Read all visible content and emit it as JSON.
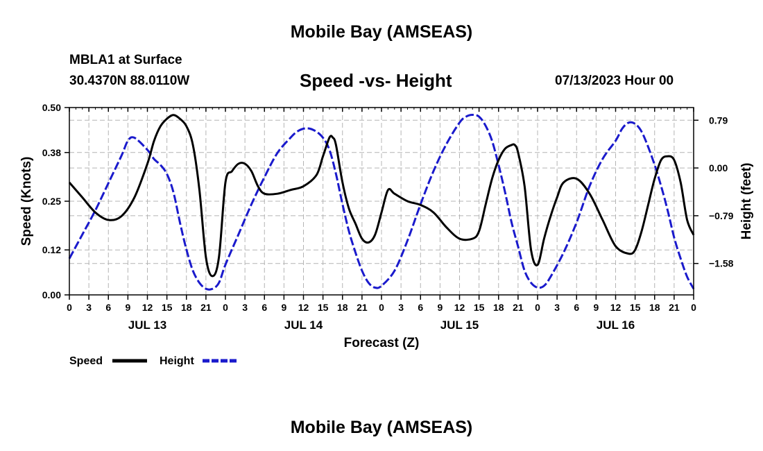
{
  "page": {
    "title_top": "Mobile Bay (AMSEAS)",
    "title_bottom": "Mobile Bay (AMSEAS)",
    "station": "MBLA1 at Surface",
    "coords": "30.4370N  88.0110W",
    "subtitle": "Speed -vs- Height",
    "datetime": "07/13/2023 Hour 00"
  },
  "colors": {
    "speed": "#000000",
    "height": "#1a1acc",
    "grid": "#b4b4b4"
  },
  "chart_data": {
    "type": "line",
    "title": "Speed -vs- Height",
    "xlabel": "Forecast (Z)",
    "ylabel": "Speed (Knots)",
    "y2label": "Height (feet)",
    "xlim": [
      0,
      96
    ],
    "ylim": [
      0,
      0.5
    ],
    "y2lim": [
      -2.1,
      1.0
    ],
    "x_ticks": [
      0,
      3,
      6,
      9,
      12,
      15,
      18,
      21,
      24,
      27,
      30,
      33,
      36,
      39,
      42,
      45,
      48,
      51,
      54,
      57,
      60,
      63,
      66,
      69,
      72,
      75,
      78,
      81,
      84,
      87,
      90,
      93,
      96
    ],
    "x_tick_labels": [
      "0",
      "3",
      "6",
      "9",
      "12",
      "15",
      "18",
      "21",
      "0",
      "3",
      "6",
      "9",
      "12",
      "15",
      "18",
      "21",
      "0",
      "3",
      "6",
      "9",
      "12",
      "15",
      "18",
      "21",
      "0",
      "3",
      "6",
      "9",
      "12",
      "15",
      "18",
      "21",
      "0"
    ],
    "day_labels": [
      {
        "x": 12,
        "label": "JUL 13"
      },
      {
        "x": 36,
        "label": "JUL 14"
      },
      {
        "x": 60,
        "label": "JUL 15"
      },
      {
        "x": 84,
        "label": "JUL 16"
      }
    ],
    "y_ticks": [
      0.0,
      0.12,
      0.25,
      0.38,
      0.5
    ],
    "y_tick_labels": [
      "0.00",
      "0.12",
      "0.25",
      "0.38",
      "0.50"
    ],
    "y2_ticks": [
      0.79,
      0.0,
      -0.79,
      -1.58
    ],
    "y2_tick_labels": [
      "0.79",
      "0.00",
      "−0.79",
      "−1.58"
    ],
    "legend": [
      {
        "name": "Speed",
        "style": "solid"
      },
      {
        "name": "Height",
        "style": "dashed"
      }
    ],
    "series": [
      {
        "name": "Speed",
        "axis": "left",
        "x": [
          0,
          2,
          4,
          6,
          8,
          10,
          12,
          13,
          14,
          15,
          16,
          17,
          18,
          19,
          20,
          21,
          22,
          23,
          24,
          25,
          26,
          27,
          28,
          29,
          30,
          32,
          34,
          36,
          38,
          39,
          40,
          40.5,
          41,
          42,
          43,
          44,
          45,
          46,
          47,
          48,
          49,
          50,
          52,
          54,
          56,
          58,
          60,
          62,
          63,
          64,
          65,
          66,
          67,
          68,
          68.5,
          69,
          70,
          71,
          72,
          73,
          74,
          75,
          76,
          78,
          80,
          82,
          84,
          86,
          87,
          88,
          89,
          90,
          91,
          92,
          93,
          94,
          95,
          96
        ],
        "values": [
          0.3,
          0.26,
          0.22,
          0.2,
          0.21,
          0.26,
          0.35,
          0.41,
          0.45,
          0.47,
          0.48,
          0.47,
          0.45,
          0.4,
          0.28,
          0.1,
          0.05,
          0.1,
          0.3,
          0.33,
          0.35,
          0.35,
          0.33,
          0.29,
          0.27,
          0.27,
          0.28,
          0.29,
          0.32,
          0.37,
          0.42,
          0.42,
          0.4,
          0.3,
          0.23,
          0.19,
          0.15,
          0.14,
          0.16,
          0.22,
          0.28,
          0.27,
          0.25,
          0.24,
          0.22,
          0.18,
          0.15,
          0.15,
          0.17,
          0.24,
          0.31,
          0.36,
          0.39,
          0.4,
          0.4,
          0.38,
          0.29,
          0.12,
          0.08,
          0.15,
          0.21,
          0.26,
          0.3,
          0.31,
          0.27,
          0.2,
          0.13,
          0.11,
          0.12,
          0.17,
          0.24,
          0.31,
          0.36,
          0.37,
          0.36,
          0.3,
          0.2,
          0.16
        ]
      },
      {
        "name": "Height",
        "axis": "right",
        "x": [
          0,
          2,
          4,
          6,
          8,
          9,
          10,
          12,
          13,
          14,
          15,
          16,
          17,
          18,
          19,
          20,
          21,
          22,
          23,
          24,
          26,
          28,
          30,
          32,
          34,
          35,
          36,
          37,
          38,
          39,
          40,
          41,
          42,
          43,
          44,
          45,
          46,
          47,
          48,
          50,
          52,
          54,
          56,
          58,
          60,
          61,
          62,
          63,
          64,
          65,
          66,
          67,
          68,
          69,
          70,
          71,
          72,
          73,
          74,
          76,
          78,
          80,
          82,
          84,
          85,
          86,
          87,
          88,
          89,
          90,
          91,
          92,
          93,
          94,
          95,
          96
        ],
        "values": [
          -1.5,
          -1.1,
          -0.7,
          -0.25,
          0.2,
          0.45,
          0.5,
          0.3,
          0.15,
          0.05,
          -0.1,
          -0.4,
          -0.9,
          -1.35,
          -1.7,
          -1.9,
          -2.0,
          -2.0,
          -1.9,
          -1.6,
          -1.1,
          -0.6,
          -0.15,
          0.25,
          0.5,
          0.6,
          0.65,
          0.65,
          0.6,
          0.5,
          0.3,
          -0.1,
          -0.6,
          -1.05,
          -1.4,
          -1.7,
          -1.9,
          -1.98,
          -1.95,
          -1.7,
          -1.2,
          -0.6,
          -0.05,
          0.4,
          0.75,
          0.85,
          0.88,
          0.85,
          0.7,
          0.45,
          0.05,
          -0.4,
          -0.9,
          -1.3,
          -1.7,
          -1.9,
          -1.98,
          -1.95,
          -1.8,
          -1.4,
          -0.9,
          -0.3,
          0.15,
          0.45,
          0.65,
          0.75,
          0.73,
          0.6,
          0.35,
          0.05,
          -0.3,
          -0.7,
          -1.15,
          -1.5,
          -1.8,
          -2.0
        ]
      }
    ]
  }
}
